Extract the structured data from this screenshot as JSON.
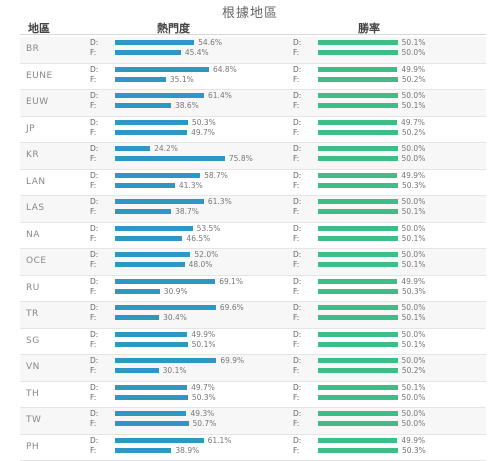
{
  "page_title": "根據地區",
  "headers": {
    "region": "地區",
    "popularity": "熱門度",
    "win_rate": "勝率"
  },
  "side_labels": {
    "d": "D:",
    "f": "F:"
  },
  "colors": {
    "popularity_bar": "#2e97c4",
    "win_rate_bar": "#3fbd88"
  },
  "chart_data": {
    "type": "bar",
    "orientation": "horizontal",
    "categories": [
      "BR",
      "EUNE",
      "EUW",
      "JP",
      "KR",
      "LAN",
      "LAS",
      "NA",
      "OCE",
      "RU",
      "TR",
      "SG",
      "VN",
      "TH",
      "TW",
      "PH"
    ],
    "popularity": {
      "title": "熱門度",
      "unit": "%",
      "series": [
        {
          "name": "D:",
          "values": [
            54.6,
            64.8,
            61.4,
            50.3,
            24.2,
            58.7,
            61.3,
            53.5,
            52.0,
            69.1,
            69.6,
            49.9,
            69.9,
            49.7,
            49.3,
            61.1
          ]
        },
        {
          "name": "F:",
          "values": [
            45.4,
            35.1,
            38.6,
            49.7,
            75.8,
            41.3,
            38.7,
            46.5,
            48.0,
            30.9,
            30.4,
            50.1,
            30.1,
            50.3,
            50.7,
            38.9
          ]
        }
      ]
    },
    "win_rate": {
      "title": "勝率",
      "unit": "%",
      "series": [
        {
          "name": "D:",
          "values": [
            50.1,
            49.9,
            50.0,
            49.7,
            50.0,
            49.9,
            50.0,
            50.0,
            50.0,
            49.9,
            50.0,
            50.0,
            50.0,
            50.1,
            50.0,
            49.9
          ]
        },
        {
          "name": "F:",
          "values": [
            50.0,
            50.2,
            50.1,
            50.2,
            50.0,
            50.3,
            50.1,
            50.1,
            50.1,
            50.3,
            50.1,
            50.1,
            50.2,
            50.0,
            50.0,
            50.3
          ]
        }
      ]
    }
  }
}
